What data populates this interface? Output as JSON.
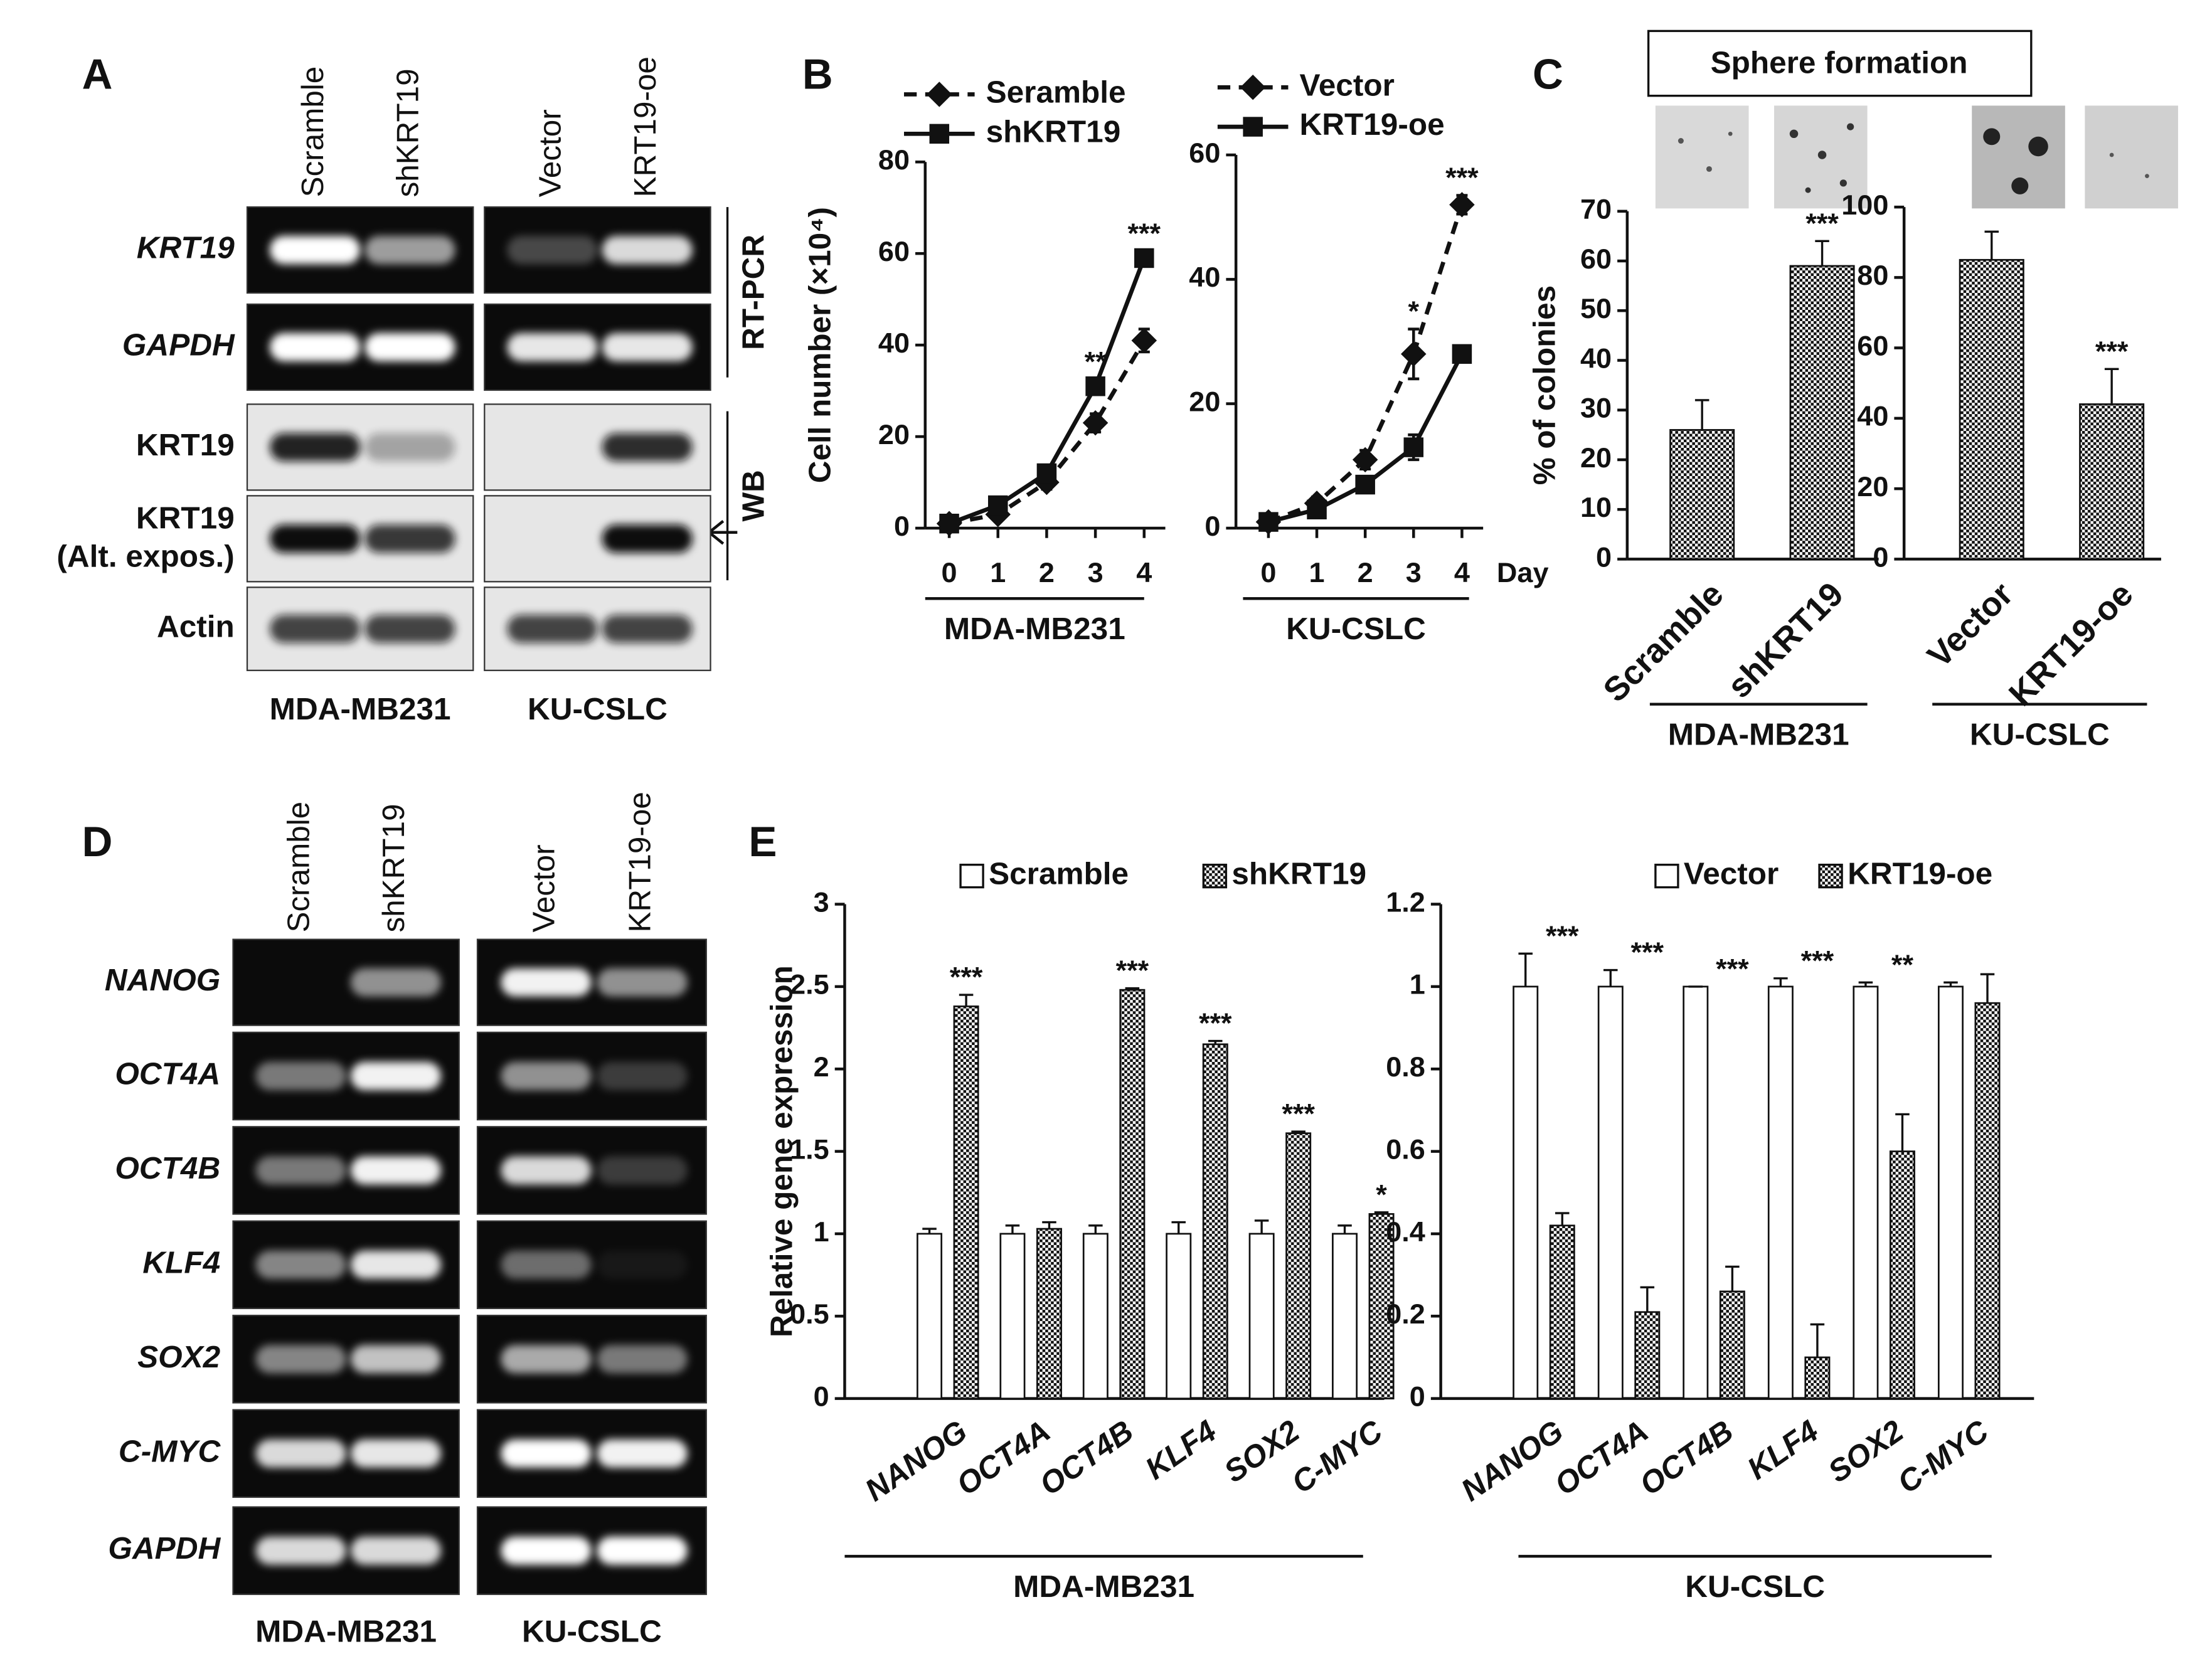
{
  "figure": {
    "panel_labels": [
      "A",
      "B",
      "C",
      "D",
      "E"
    ],
    "sphere_title": "Sphere formation"
  },
  "blots": [
    {
      "lanes": [
        "Scramble",
        "shKRT19",
        "Vector",
        "KRT19-oe"
      ],
      "rows": [
        {
          "label": "KRT19",
          "italic": true
        },
        {
          "label": "GAPDH",
          "italic": true
        },
        {
          "label": "KRT19"
        },
        {
          "label": "KRT19",
          "sublabel": "(Alt. expos.)"
        },
        {
          "label": "Actin"
        }
      ],
      "groups": [
        "MDA-MB231",
        "KU-CSLC"
      ],
      "brackets": [
        "RT-PCR",
        "WB"
      ]
    },
    {
      "lanes": [
        "Scramble",
        "shKRT19",
        "Vector",
        "KRT19-oe"
      ],
      "rows": [
        {
          "label": "NANOG",
          "italic": true
        },
        {
          "label": "OCT4A",
          "italic": true
        },
        {
          "label": "OCT4B",
          "italic": true
        },
        {
          "label": "KLF4",
          "italic": true
        },
        {
          "label": "SOX2",
          "italic": true
        },
        {
          "label": "C-MYC",
          "italic": true
        },
        {
          "label": "GAPDH",
          "italic": true
        }
      ],
      "groups": [
        "MDA-MB231",
        "KU-CSLC"
      ]
    }
  ],
  "chart_data": [
    {
      "type": "line",
      "categories": [
        "0",
        "1",
        "2",
        "3",
        "4"
      ],
      "ylabel": "Cell number (×10⁴)",
      "group": "MDA-MB231",
      "ylim": [
        0,
        80
      ],
      "yticks": [
        0,
        20,
        40,
        60,
        80
      ],
      "series": [
        {
          "name": "Seramble",
          "color": "#111111",
          "dash": true,
          "marker": "diamond",
          "values": [
            1,
            3,
            10,
            23,
            41
          ],
          "errors": [
            0.5,
            1,
            1.5,
            2,
            2.5
          ]
        },
        {
          "name": "shKRT19",
          "color": "#111111",
          "dash": false,
          "marker": "square",
          "values": [
            1,
            5,
            12,
            31,
            59
          ],
          "errors": [
            0.5,
            1,
            1.5,
            1.5,
            1.5
          ]
        }
      ],
      "annotations": [
        null,
        null,
        null,
        "**",
        "***"
      ]
    },
    {
      "type": "line",
      "categories": [
        "0",
        "1",
        "2",
        "3",
        "4"
      ],
      "xlabel": "Day",
      "group": "KU-CSLC",
      "ylim": [
        0,
        60
      ],
      "yticks": [
        0,
        20,
        40,
        60
      ],
      "series": [
        {
          "name": "Vector",
          "color": "#111111",
          "dash": true,
          "marker": "diamond",
          "values": [
            1,
            4,
            11,
            28,
            52
          ],
          "errors": [
            0.5,
            1,
            1.5,
            4,
            1.5
          ]
        },
        {
          "name": "KRT19-oe",
          "color": "#111111",
          "dash": false,
          "marker": "square",
          "values": [
            1,
            3,
            7,
            13,
            28
          ],
          "errors": [
            0.5,
            1,
            1,
            2,
            1
          ]
        }
      ],
      "annotations": [
        null,
        null,
        null,
        "*",
        "***"
      ]
    },
    {
      "type": "bar",
      "categories": [
        "Scramble",
        "shKRT19"
      ],
      "ylabel": "% of colonies",
      "group": "MDA-MB231",
      "values": [
        26,
        59
      ],
      "errors": [
        6,
        5
      ],
      "color": "#555555",
      "pattern": "checker",
      "ylim": [
        0,
        70
      ],
      "yticks": [
        0,
        10,
        20,
        30,
        40,
        50,
        60,
        70
      ],
      "annotations": [
        null,
        "***"
      ]
    },
    {
      "type": "bar",
      "categories": [
        "Vector",
        "KRT19-oe"
      ],
      "group": "KU-CSLC",
      "values": [
        85,
        44
      ],
      "errors": [
        8,
        10
      ],
      "color": "#555555",
      "pattern": "checker",
      "ylim": [
        0,
        100
      ],
      "yticks": [
        0,
        20,
        40,
        60,
        80,
        100
      ],
      "annotations": [
        null,
        "***"
      ]
    },
    {
      "type": "bar",
      "categories": [
        "NANOG",
        "OCT4A",
        "OCT4B",
        "KLF4",
        "SOX2",
        "C-MYC"
      ],
      "ylabel": "Relative gene expression",
      "group": "MDA-MB231",
      "ylim": [
        0,
        3
      ],
      "yticks": [
        0,
        0.5,
        1,
        1.5,
        2,
        2.5,
        3
      ],
      "series": [
        {
          "name": "Scramble",
          "color": "#ffffff",
          "values": [
            1,
            1,
            1,
            1,
            1,
            1
          ],
          "errors": [
            0.03,
            0.05,
            0.05,
            0.07,
            0.08,
            0.05
          ]
        },
        {
          "name": "shKRT19",
          "color": "#555555",
          "pattern": "checker",
          "values": [
            2.38,
            1.03,
            2.48,
            2.15,
            1.61,
            1.12
          ],
          "errors": [
            0.07,
            0.04,
            0.01,
            0.02,
            0.01,
            0.01
          ]
        }
      ],
      "annotations": [
        "***",
        null,
        "***",
        "***",
        "***",
        "*"
      ]
    },
    {
      "type": "bar",
      "categories": [
        "NANOG",
        "OCT4A",
        "OCT4B",
        "KLF4",
        "SOX2",
        "C-MYC"
      ],
      "group": "KU-CSLC",
      "ylim": [
        0,
        1.2
      ],
      "yticks": [
        0,
        0.2,
        0.4,
        0.6,
        0.8,
        1,
        1.2
      ],
      "series": [
        {
          "name": "Vector",
          "color": "#ffffff",
          "values": [
            1,
            1,
            1,
            1,
            1,
            1
          ],
          "errors": [
            0.08,
            0.04,
            0,
            0.02,
            0.01,
            0.01
          ]
        },
        {
          "name": "KRT19-oe",
          "color": "#555555",
          "pattern": "checker",
          "values": [
            0.42,
            0.21,
            0.26,
            0.1,
            0.6,
            0.96
          ],
          "errors": [
            0.03,
            0.06,
            0.06,
            0.08,
            0.09,
            0.07
          ]
        }
      ],
      "annotations": [
        "***",
        "***",
        "***",
        "***",
        "**",
        null
      ]
    }
  ]
}
